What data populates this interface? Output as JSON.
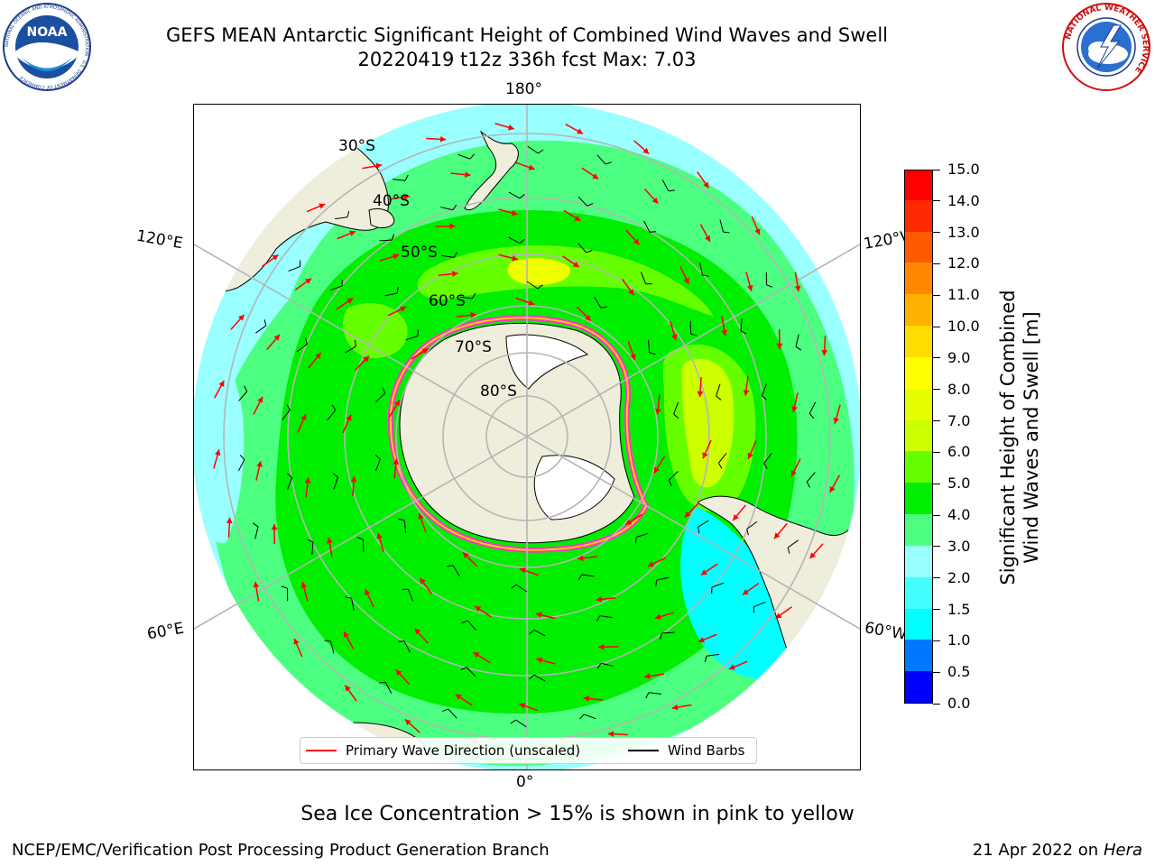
{
  "header": {
    "title_line1": "GEFS MEAN Antarctic Significant Height of Combined Wind Waves and Swell",
    "title_line2": "20220419 t12z 336h fcst   Max: 7.03"
  },
  "logos": {
    "noaa_text": "NOAA",
    "noaa_ring_text": "NATIONAL OCEANIC AND ATMOSPHERIC ADMINISTRATION · U.S. DEPARTMENT OF COMMERCE",
    "nws_ring_text": "NATIONAL WEATHER SERVICE"
  },
  "map": {
    "projection": "south-polar-stereographic",
    "longitude_labels": {
      "top": "180°",
      "bottom": "0°",
      "left_upper": "120°E",
      "left_lower": "60°E",
      "right_upper": "120°W",
      "right_lower": "60°W"
    },
    "latitude_labels": [
      "30°S",
      "40°S",
      "50°S",
      "60°S",
      "70°S",
      "80°S"
    ],
    "colors": {
      "ocean_0_2": "#00ffff",
      "ocean_2_3": "#99ffff",
      "ocean_3_4": "#4dff80",
      "ocean_4_5": "#00ee00",
      "ocean_5_6": "#66ff00",
      "ocean_6_7": "#ccff00",
      "ocean_7_8": "#eeff00",
      "land": "#efeddc",
      "ice_edge_pink": "#ff33cc",
      "ice_edge_yellow": "#ffcc00",
      "arrow": "#ff0000",
      "barb": "#000000"
    }
  },
  "colorbar": {
    "label_line1": "Significant Height of Combined",
    "label_line2": "Wind Waves and Swell [m]",
    "min": 0.0,
    "max": 15.0,
    "ticks": [
      "0.0",
      "0.5",
      "1.0",
      "1.5",
      "2.0",
      "3.0",
      "4.0",
      "5.0",
      "6.0",
      "7.0",
      "8.0",
      "9.0",
      "10.0",
      "11.0",
      "12.0",
      "13.0",
      "14.0",
      "15.0"
    ],
    "colors": [
      "#0000ff",
      "#0077ff",
      "#00ffff",
      "#44ffff",
      "#99ffff",
      "#4dff80",
      "#00ee00",
      "#66ff00",
      "#ccff00",
      "#e6ff00",
      "#ffff00",
      "#ffdd00",
      "#ffb300",
      "#ff8800",
      "#ff5a00",
      "#ff2a00",
      "#ff0000"
    ]
  },
  "legend": {
    "wave_direction_label": "Primary Wave Direction (unscaled)",
    "wave_direction_color": "#ff0000",
    "wind_barbs_label": "Wind Barbs",
    "wind_barbs_color": "#000000"
  },
  "footnote": "Sea Ice Concentration > 15% is shown in pink to yellow",
  "footer": {
    "org": "NCEP/EMC/Verification Post Processing Product Generation Branch",
    "date": "21 Apr 2022 on ",
    "machine": "Hera"
  }
}
